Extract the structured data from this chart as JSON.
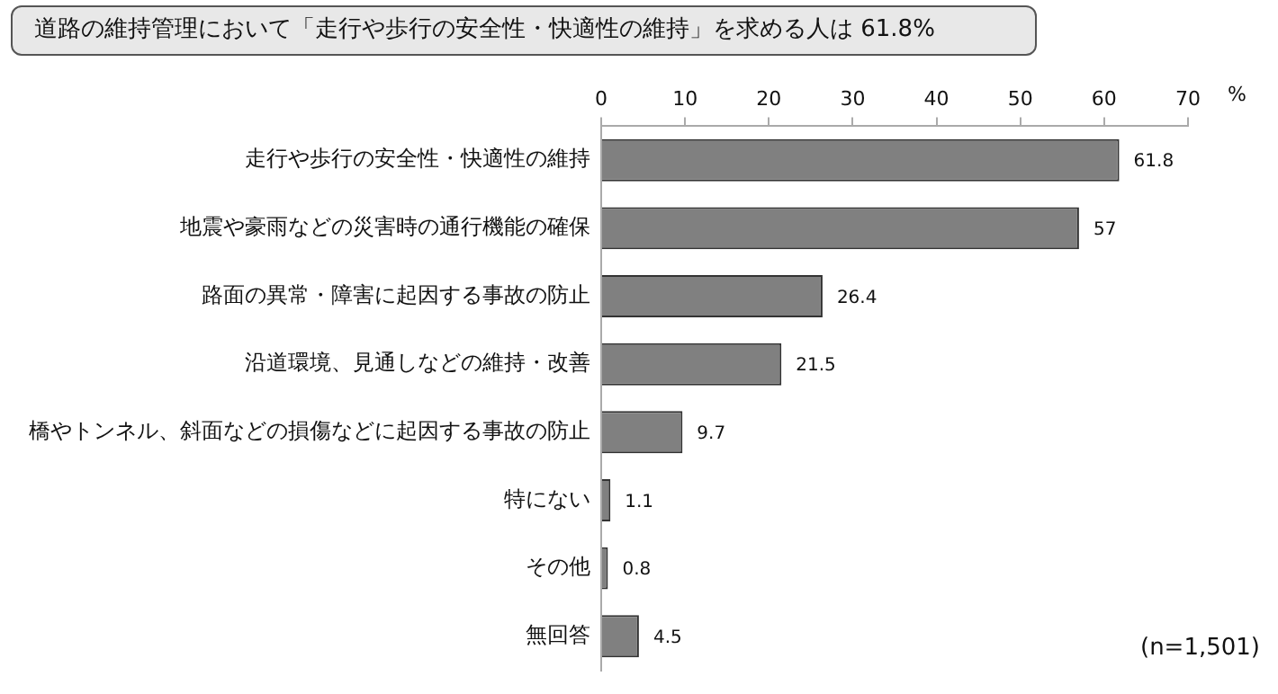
{
  "chart_data": {
    "type": "bar",
    "orientation": "horizontal",
    "title": "道路の維持管理において「走行や歩行の安全性・快適性の維持」を求める人は 61.8%",
    "categories": [
      "走行や歩行の安全性・快適性の維持",
      "地震や豪雨などの災害時の通行機能の確保",
      "路面の異常・障害に起因する事故の防止",
      "沿道環境、見通しなどの維持・改善",
      "橋やトンネル、斜面などの損傷などに起因する事故の防止",
      "特にない",
      "その他",
      "無回答"
    ],
    "values": [
      61.8,
      57,
      26.4,
      21.5,
      9.7,
      1.1,
      0.8,
      4.5
    ],
    "color": "#808080",
    "xlabel": "%",
    "xlim": [
      0,
      70
    ],
    "xticks": [
      0,
      10,
      20,
      30,
      40,
      50,
      60,
      70
    ],
    "grid": false,
    "legend": false,
    "data_labels": true,
    "annotations": [
      "(n=1,501)"
    ]
  }
}
